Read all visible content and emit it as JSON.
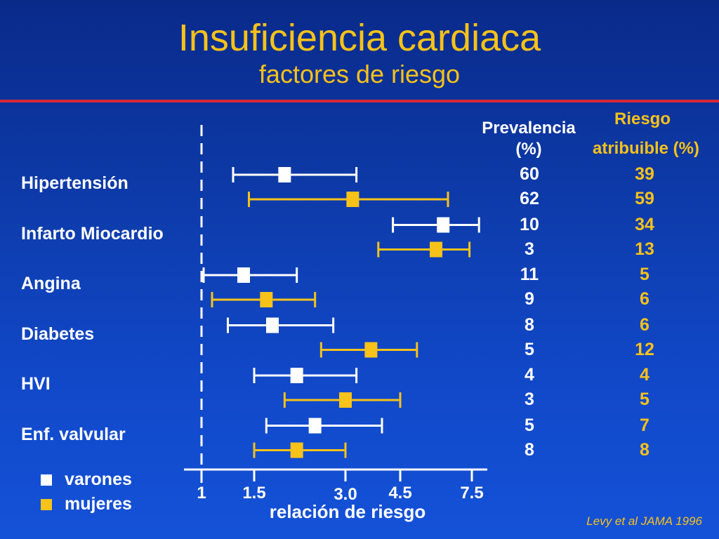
{
  "slide": {
    "title": "Insuficiencia cardiaca",
    "subtitle": "factores de riesgo",
    "citation": "Levy et al JAMA 1996"
  },
  "columns": {
    "prevalencia_line1": "Prevalencia",
    "prevalencia_line2": "(%)",
    "riesgo_line1": "Riesgo",
    "riesgo_line2": "atribuible (%)"
  },
  "legend": {
    "items": [
      {
        "label": "varones",
        "color": "#ffffff"
      },
      {
        "label": "mujeres",
        "color": "#f7c21a"
      }
    ]
  },
  "colors": {
    "varones": "#ffffff",
    "mujeres": "#f7c21a",
    "accent_line": "#d62838"
  },
  "chart_data": {
    "type": "forest",
    "xlabel": "relación de riesgo",
    "x_ticks": [
      {
        "label": "1",
        "value": 1
      },
      {
        "label": "1.5",
        "value": 1.5
      },
      {
        "label": "3.0",
        "value": 3.0
      },
      {
        "label": "4.5",
        "value": 4.5
      },
      {
        "label": "7.5",
        "value": 7.5
      }
    ],
    "reference_line": 1,
    "series": [
      {
        "name": "varones"
      },
      {
        "name": "mujeres"
      }
    ],
    "rows": [
      {
        "label": "Hipertensión",
        "varones": {
          "point": 2.0,
          "low": 1.3,
          "high": 3.3,
          "prevalencia": "60",
          "riesgo": "39"
        },
        "mujeres": {
          "point": 3.2,
          "low": 1.45,
          "high": 6.5,
          "prevalencia": "62",
          "riesgo": "59"
        }
      },
      {
        "label": "Infarto Miocardio",
        "varones": {
          "point": 6.3,
          "low": 4.3,
          "high": 7.8,
          "prevalencia": "10",
          "riesgo": "34"
        },
        "mujeres": {
          "point": 6.0,
          "low": 3.9,
          "high": 7.4,
          "prevalencia": "3",
          "riesgo": "13"
        }
      },
      {
        "label": "Angina",
        "varones": {
          "point": 1.4,
          "low": 1.02,
          "high": 2.2,
          "prevalencia": "11",
          "riesgo": "5"
        },
        "mujeres": {
          "point": 1.7,
          "low": 1.1,
          "high": 2.5,
          "prevalencia": "9",
          "riesgo": "6"
        }
      },
      {
        "label": "Diabetes",
        "varones": {
          "point": 1.8,
          "low": 1.25,
          "high": 2.8,
          "prevalencia": "8",
          "riesgo": "6"
        },
        "mujeres": {
          "point": 3.7,
          "low": 2.6,
          "high": 5.2,
          "prevalencia": "5",
          "riesgo": "12"
        }
      },
      {
        "label": "HVI",
        "varones": {
          "point": 2.2,
          "low": 1.5,
          "high": 3.3,
          "prevalencia": "4",
          "riesgo": "4"
        },
        "mujeres": {
          "point": 3.0,
          "low": 2.0,
          "high": 4.5,
          "prevalencia": "3",
          "riesgo": "5"
        }
      },
      {
        "label": "Enf. valvular",
        "varones": {
          "point": 2.5,
          "low": 1.7,
          "high": 4.0,
          "prevalencia": "5",
          "riesgo": "7"
        },
        "mujeres": {
          "point": 2.2,
          "low": 1.5,
          "high": 3.0,
          "prevalencia": "8",
          "riesgo": "8"
        }
      }
    ]
  }
}
